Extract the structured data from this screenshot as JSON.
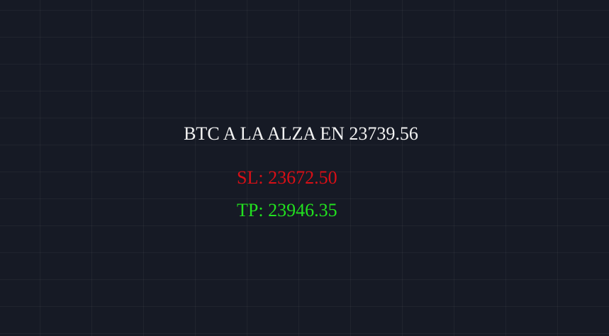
{
  "signal": {
    "headline": "BTC A LA ALZA EN 23739.56",
    "stop_loss": "SL: 23672.50",
    "take_profit": "TP: 23946.35"
  },
  "colors": {
    "background": "#161a25",
    "headline": "#f2f2f2",
    "stop_loss": "#d80f16",
    "take_profit": "#22e11f"
  }
}
